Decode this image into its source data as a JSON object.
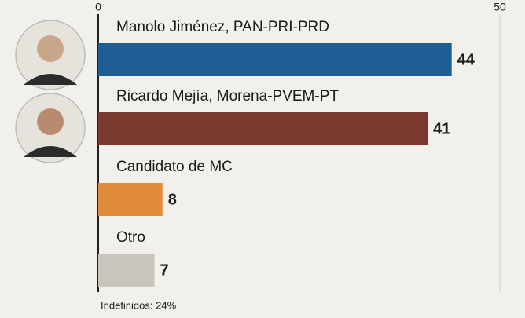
{
  "chart_data": {
    "type": "bar",
    "orientation": "horizontal",
    "categories": [
      "Manolo Jiménez, PAN-PRI-PRD",
      "Ricardo Mejía, Morena-PVEM-PT",
      "Candidato de MC",
      "Otro"
    ],
    "values": [
      44,
      41,
      8,
      7
    ],
    "colors": [
      "#1f5e93",
      "#7b3a2f",
      "#e08a3c",
      "#c9c5bd"
    ],
    "xlim": [
      0,
      50
    ],
    "xticks": [
      0,
      50
    ],
    "annotation": "Indefinidos: 24%"
  }
}
